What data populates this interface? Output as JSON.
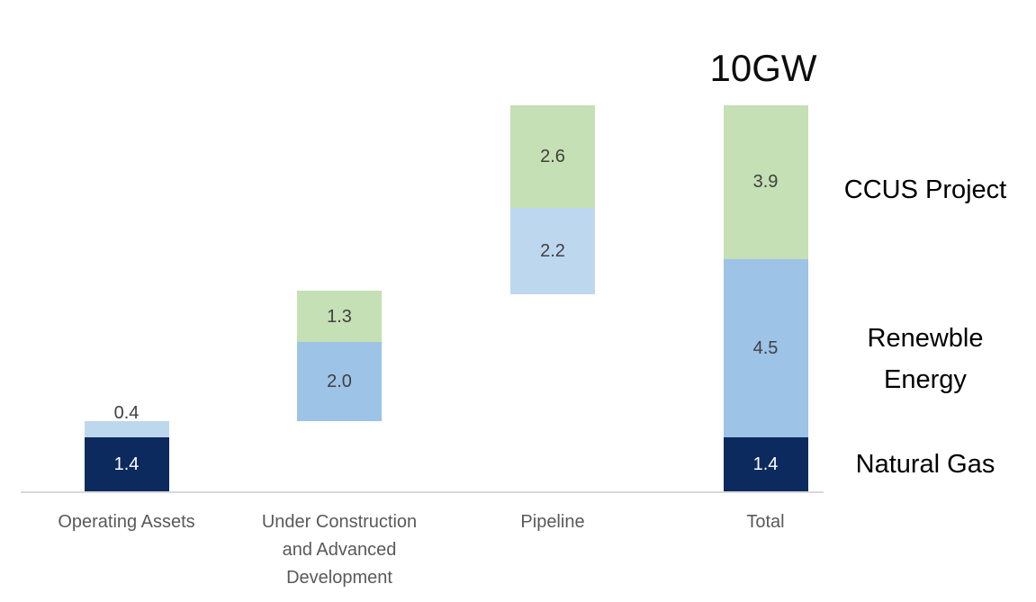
{
  "title": "10GW",
  "colors": {
    "green": "#c5e0b4",
    "medium_blue": "#9dc3e6",
    "light_blue": "#bdd7ee",
    "navy": "#0d2a5e",
    "axis_line": "#d9d9d9",
    "axis_label_text": "#595959",
    "data_label_text": "#404040",
    "data_label_on_dark": "#ffffff",
    "title_text": "#0d0d0d",
    "series_label_text": "#000000"
  },
  "chart_data": {
    "type": "bar",
    "subtype": "stacked waterfall",
    "title": "10GW",
    "unit": "GW",
    "ylim": [
      0,
      10
    ],
    "grid": false,
    "legend_position": "right",
    "categories": [
      "Operating Assets",
      "Under Construction and Advanced Development",
      "Pipeline",
      "Total"
    ],
    "series_labels": [
      "CCUS Project",
      "Renewble Energy",
      "Natural Gas"
    ],
    "bars": [
      {
        "category": "Operating Assets",
        "start": 0,
        "segments": [
          {
            "series": "Natural Gas",
            "value": 1.4,
            "label": "1.4",
            "color": "navy",
            "label_style": "inside-white"
          },
          {
            "series": "Renewble Energy",
            "value": 0.4,
            "label": "0.4",
            "color": "light_blue",
            "label_style": "outside-top"
          }
        ]
      },
      {
        "category": "Under Construction and Advanced Development",
        "start": 1.8,
        "segments": [
          {
            "series": "Renewble Energy",
            "value": 2.0,
            "label": "2.0",
            "color": "medium_blue",
            "label_style": "inside"
          },
          {
            "series": "CCUS Project",
            "value": 1.3,
            "label": "1.3",
            "color": "green",
            "label_style": "inside"
          }
        ]
      },
      {
        "category": "Pipeline",
        "start": 5.0,
        "segments": [
          {
            "series": "Renewble Energy",
            "value": 2.2,
            "label": "2.2",
            "color": "light_blue",
            "label_style": "inside"
          },
          {
            "series": "CCUS Project",
            "value": 2.6,
            "label": "2.6",
            "color": "green",
            "label_style": "inside"
          }
        ]
      },
      {
        "category": "Total",
        "start": 0,
        "segments": [
          {
            "series": "Natural Gas",
            "value": 1.4,
            "label": "1.4",
            "color": "navy",
            "label_style": "inside-white"
          },
          {
            "series": "Renewble Energy",
            "value": 4.5,
            "label": "4.5",
            "color": "medium_blue",
            "label_style": "inside"
          },
          {
            "series": "CCUS Project",
            "value": 3.9,
            "label": "3.9",
            "color": "green",
            "label_style": "inside"
          }
        ]
      }
    ]
  }
}
